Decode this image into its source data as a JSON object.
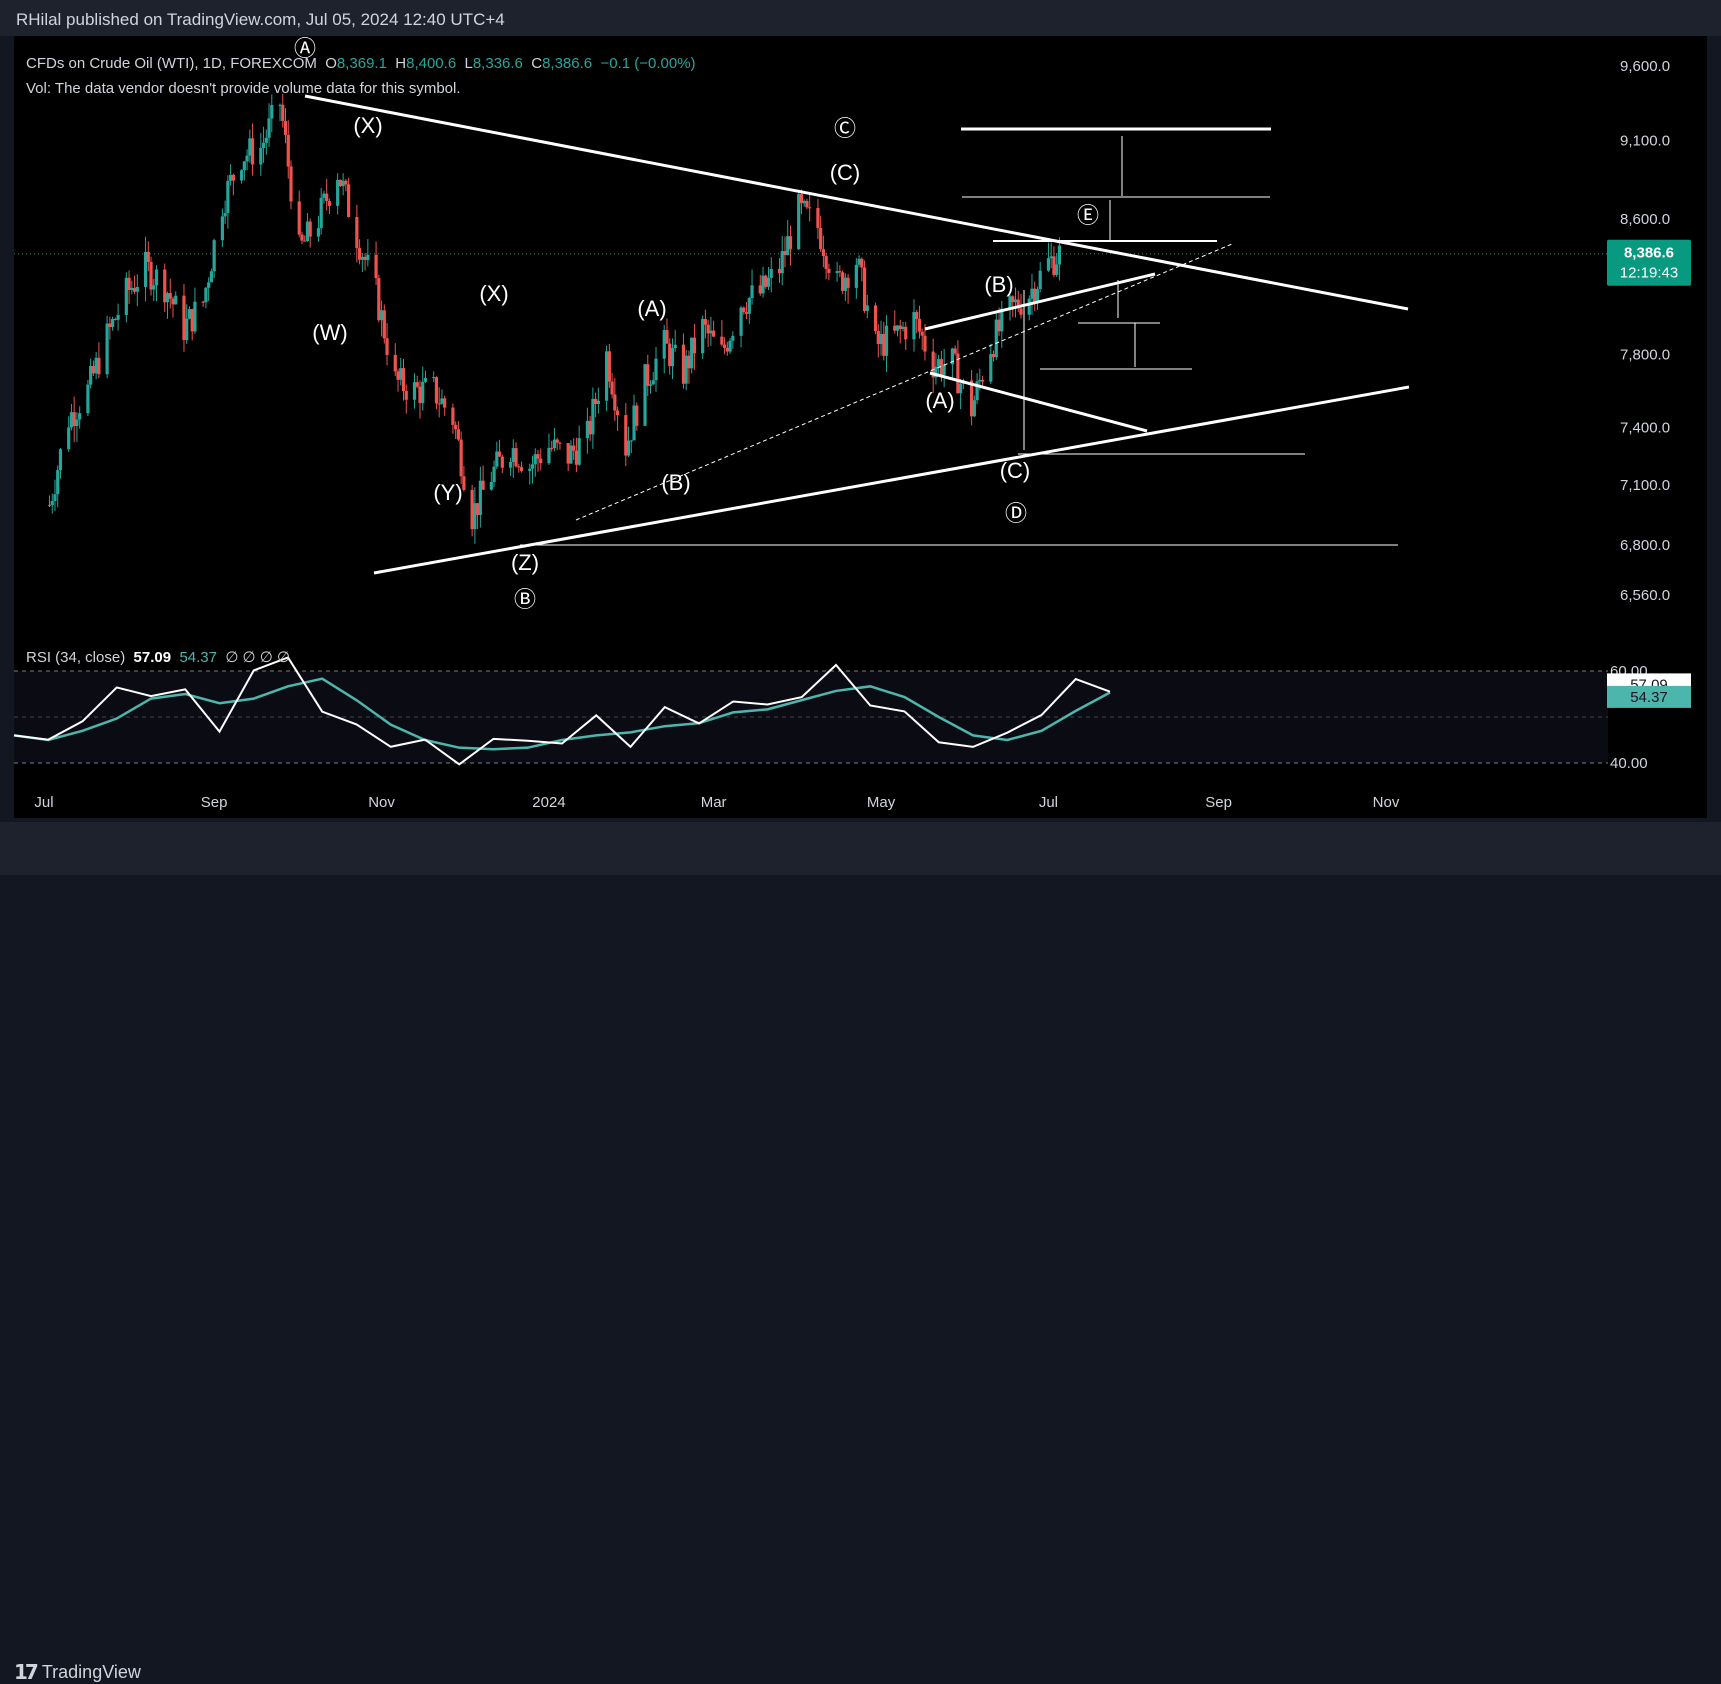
{
  "header": {
    "published": "RHilal published on TradingView.com, Jul 05, 2024 12:40 UTC+4"
  },
  "symbol": {
    "name": "CFDs on Crude Oil (WTI), 1D, FOREXCOM",
    "o_label": "O",
    "o": "8,369.1",
    "h_label": "H",
    "h": "8,400.6",
    "l_label": "L",
    "l": "8,336.6",
    "c_label": "C",
    "c": "8,386.6",
    "change": "−0.1 (−0.00%)",
    "vol_note": "Vol: The data vendor doesn't provide volume data for this symbol."
  },
  "price_badge": {
    "price": "8,386.6",
    "countdown": "12:19:43",
    "color": "#089981"
  },
  "rsi": {
    "label": "RSI (34, close)",
    "value": "57.09",
    "ma": "54.37",
    "extra": "∅ ∅ ∅ ∅",
    "levels": [
      "60.00",
      "40.00"
    ]
  },
  "footer": {
    "brand": "TradingView"
  },
  "colors": {
    "up": "#26a69a",
    "down": "#ef5350",
    "line": "#ffffff",
    "rsi_ma": "#4db6ac",
    "badge": "#089981"
  },
  "chart_data": {
    "type": "line",
    "title": "CFDs on Crude Oil (WTI), 1D, FOREXCOM",
    "x_ticks": [
      "Jul",
      "Sep",
      "Nov",
      "2024",
      "Mar",
      "May",
      "Jul",
      "Sep",
      "Nov"
    ],
    "y_ticks": [
      "9,600.0",
      "9,100.0",
      "8,600.0",
      "7,800.0",
      "7,400.0",
      "7,100.0",
      "6,800.0",
      "6,560.0"
    ],
    "y_scale": "log",
    "ylim": [
      6450,
      9850
    ],
    "last_price": 8386.6,
    "series": [
      {
        "values": [
          [
            "2023-07-03",
            7000
          ],
          [
            "2023-07-10",
            7450
          ],
          [
            "2023-07-17",
            7600
          ],
          [
            "2023-07-24",
            7900
          ],
          [
            "2023-07-31",
            8150
          ],
          [
            "2023-08-07",
            8300
          ],
          [
            "2023-08-14",
            8200
          ],
          [
            "2023-08-21",
            7950
          ],
          [
            "2023-08-28",
            8100
          ],
          [
            "2023-09-04",
            8700
          ],
          [
            "2023-09-11",
            9000
          ],
          [
            "2023-09-18",
            9050
          ],
          [
            "2023-09-25",
            9350
          ],
          [
            "2023-10-02",
            8400
          ],
          [
            "2023-10-09",
            8600
          ],
          [
            "2023-10-16",
            8900
          ],
          [
            "2023-10-23",
            8500
          ],
          [
            "2023-10-30",
            8150
          ],
          [
            "2023-11-06",
            7650
          ],
          [
            "2023-11-13",
            7600
          ],
          [
            "2023-11-20",
            7600
          ],
          [
            "2023-11-27",
            7450
          ],
          [
            "2023-12-04",
            6950
          ],
          [
            "2023-12-11",
            7150
          ],
          [
            "2023-12-18",
            7300
          ],
          [
            "2023-12-25",
            7200
          ],
          [
            "2024-01-01",
            7300
          ],
          [
            "2024-01-08",
            7250
          ],
          [
            "2024-01-15",
            7350
          ],
          [
            "2024-01-22",
            7800
          ],
          [
            "2024-01-29",
            7300
          ],
          [
            "2024-02-05",
            7650
          ],
          [
            "2024-02-12",
            7850
          ],
          [
            "2024-02-19",
            7700
          ],
          [
            "2024-02-26",
            7950
          ],
          [
            "2024-03-04",
            7800
          ],
          [
            "2024-03-11",
            8100
          ],
          [
            "2024-03-18",
            8150
          ],
          [
            "2024-03-25",
            8300
          ],
          [
            "2024-04-01",
            8650
          ],
          [
            "2024-04-08",
            8550
          ],
          [
            "2024-04-15",
            8200
          ],
          [
            "2024-04-22",
            8350
          ],
          [
            "2024-04-29",
            7850
          ],
          [
            "2024-05-06",
            7900
          ],
          [
            "2024-05-13",
            8000
          ],
          [
            "2024-05-20",
            7750
          ],
          [
            "2024-05-27",
            7750
          ],
          [
            "2024-06-03",
            7500
          ],
          [
            "2024-06-10",
            7850
          ],
          [
            "2024-06-17",
            8050
          ],
          [
            "2024-06-24",
            8150
          ],
          [
            "2024-07-01",
            8330
          ],
          [
            "2024-07-05",
            8386.6
          ]
        ]
      }
    ],
    "wave_labels": [
      "Ⓐ",
      "(X)",
      "(W)",
      "(X)",
      "(Y)",
      "(Z)",
      "Ⓑ",
      "(A)",
      "(B)",
      "Ⓒ",
      "(C)",
      "(B)",
      "(A)",
      "(C)",
      "Ⓓ",
      "Ⓔ"
    ],
    "rsi_series": {
      "levels": [
        60,
        40
      ],
      "values": [
        46,
        44,
        51,
        54,
        57,
        54,
        48,
        60,
        62,
        53,
        46,
        46,
        43,
        41,
        45,
        44,
        46,
        48,
        46,
        50,
        50,
        53,
        52,
        56,
        59,
        55,
        49,
        46,
        43,
        46,
        52,
        56,
        58
      ]
    }
  }
}
